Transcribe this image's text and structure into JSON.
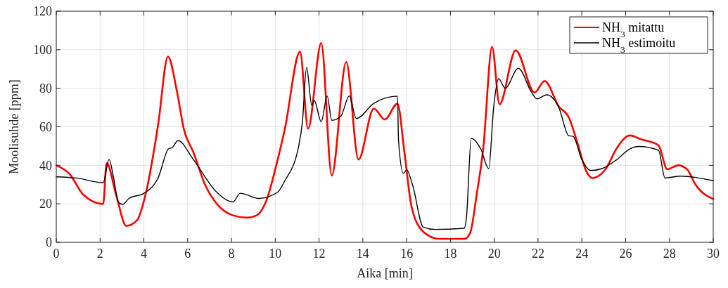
{
  "chart_data": {
    "type": "line",
    "xlabel": "Aika [min]",
    "ylabel": "Moolisuhde [ppm]",
    "xlim": [
      0,
      30
    ],
    "ylim": [
      0,
      120
    ],
    "xticks": [
      0,
      2,
      4,
      6,
      8,
      10,
      12,
      14,
      16,
      18,
      20,
      22,
      24,
      26,
      28,
      30
    ],
    "yticks": [
      0,
      20,
      40,
      60,
      80,
      100,
      120
    ],
    "grid": true,
    "legend": "top right",
    "line_style": "solid",
    "series": [
      {
        "name": "NH$_{3}$ mitattu",
        "color": "#ff0000",
        "x": [
          0,
          0.59,
          1.23,
          2.14,
          2.3,
          2.73,
          3.2,
          3.69,
          4.12,
          4.65,
          5.1,
          5.5,
          5.83,
          6.26,
          6.8,
          7.33,
          8.07,
          8.72,
          9.15,
          9.57,
          10.09,
          10.44,
          11.13,
          11.5,
          12.1,
          12.58,
          13.24,
          13.8,
          14.5,
          15,
          15.58,
          15.9,
          16.22,
          16.76,
          17.5,
          18.63,
          18.9,
          19.2,
          19.5,
          19.9,
          20.24,
          20.98,
          21.84,
          22.3,
          22.95,
          23.4,
          23.8,
          24.2,
          24.5,
          25.1,
          25.6,
          26.2,
          26.7,
          27.5,
          27.9,
          28.4,
          28.8,
          29.2,
          30
        ],
        "values": [
          40,
          35.7,
          24.8,
          19.9,
          41.2,
          24.8,
          8.5,
          11.5,
          27,
          61,
          96.5,
          79,
          58.6,
          46.8,
          29.8,
          20,
          14,
          12.8,
          14,
          21,
          42,
          59,
          99,
          59,
          103.5,
          34.7,
          93.6,
          43,
          69.5,
          63.8,
          72,
          46.7,
          18.8,
          5.5,
          1.8,
          1.8,
          4.9,
          25,
          49,
          101.6,
          71.7,
          99.7,
          77.8,
          83.8,
          70.5,
          65,
          51.6,
          37,
          33.4,
          38.3,
          49,
          55.5,
          53.5,
          50.4,
          38,
          40,
          38,
          29.8,
          22.5
        ]
      },
      {
        "name": "NH$_{3}$ estimoitu",
        "color": "#000000",
        "x": [
          0,
          0.91,
          2.14,
          2.41,
          2.62,
          2.83,
          3.03,
          3.32,
          4.01,
          4.65,
          5.13,
          5.29,
          5.56,
          6.26,
          7.33,
          8.07,
          8.4,
          9.26,
          10.1,
          10.44,
          11.08,
          11.24,
          11.43,
          11.67,
          11.78,
          12.1,
          12.37,
          12.58,
          13,
          13.38,
          13.7,
          14.5,
          15.58,
          15.63,
          15.85,
          16,
          16.27,
          16.76,
          17.29,
          18.63,
          18.73,
          18.95,
          19.38,
          19.75,
          19.97,
          20.2,
          20.5,
          21.1,
          21.7,
          21.95,
          22.4,
          22.95,
          23.4,
          23.6,
          24,
          24.4,
          24.9,
          25.6,
          26.2,
          26.6,
          27.5,
          27.8,
          28.5,
          29.2,
          30
        ],
        "values": [
          34,
          33.4,
          31,
          43,
          33.4,
          21,
          19.7,
          22.8,
          25.5,
          33.4,
          48.6,
          49.2,
          52.8,
          43,
          26,
          21,
          25.5,
          22.8,
          26,
          32,
          50.5,
          62.6,
          90.8,
          71,
          73.7,
          62.6,
          76,
          63.4,
          65.6,
          76,
          64.3,
          72.2,
          75.9,
          52.8,
          35.8,
          37.7,
          29.8,
          7.9,
          6.7,
          7.3,
          12.8,
          54,
          48.6,
          38.3,
          69.8,
          85,
          80,
          90.4,
          78,
          74.5,
          76.6,
          70,
          55.4,
          55,
          43,
          37.3,
          38.2,
          43,
          48.6,
          49.8,
          47.8,
          33.4,
          34.4,
          33.7,
          32
        ]
      }
    ]
  }
}
